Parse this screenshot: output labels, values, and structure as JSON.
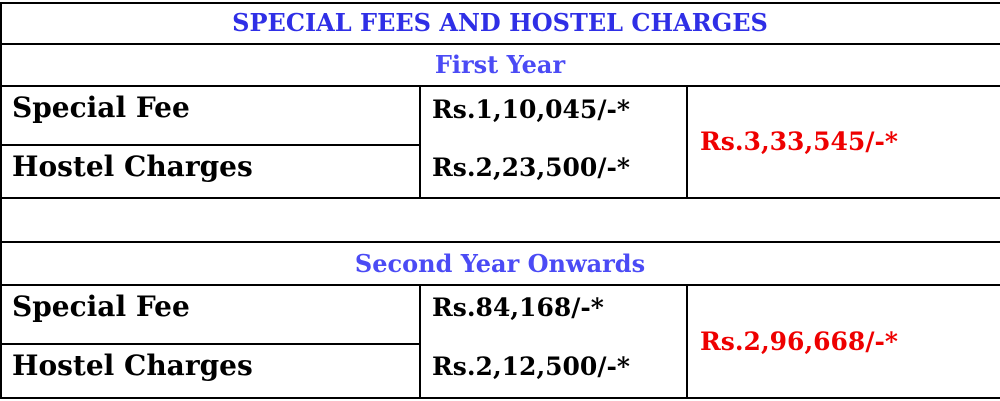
{
  "title": "SPECIAL FEES AND HOSTEL CHARGES",
  "sections": [
    {
      "heading": "First Year",
      "rows": [
        {
          "label": "Special Fee",
          "amount": "Rs.1,10,045/-*"
        },
        {
          "label": "Hostel Charges",
          "amount": "Rs.2,23,500/-*"
        }
      ],
      "total": "Rs.3,33,545/-*"
    },
    {
      "heading": "Second Year Onwards",
      "rows": [
        {
          "label": "Special Fee",
          "amount": "Rs.84,168/-*"
        },
        {
          "label": "Hostel Charges",
          "amount": "Rs.2,12,500/-*"
        }
      ],
      "total": "Rs.2,96,668/-*"
    }
  ],
  "colors": {
    "title": "#2f2fe6",
    "heading": "#4b4bf5",
    "total": "#ee0000"
  }
}
